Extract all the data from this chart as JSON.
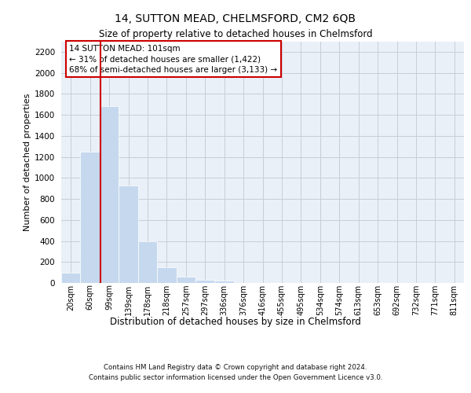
{
  "title1": "14, SUTTON MEAD, CHELMSFORD, CM2 6QB",
  "title2": "Size of property relative to detached houses in Chelmsford",
  "xlabel": "Distribution of detached houses by size in Chelmsford",
  "ylabel": "Number of detached properties",
  "categories": [
    "20sqm",
    "60sqm",
    "99sqm",
    "139sqm",
    "178sqm",
    "218sqm",
    "257sqm",
    "297sqm",
    "336sqm",
    "376sqm",
    "416sqm",
    "455sqm",
    "495sqm",
    "534sqm",
    "574sqm",
    "613sqm",
    "653sqm",
    "692sqm",
    "732sqm",
    "771sqm",
    "811sqm"
  ],
  "values": [
    100,
    1250,
    1680,
    930,
    400,
    150,
    60,
    30,
    25,
    0,
    0,
    0,
    0,
    0,
    0,
    0,
    0,
    0,
    0,
    0,
    0
  ],
  "bar_color": "#c5d8ee",
  "property_line_x": 1.55,
  "annotation_text": "14 SUTTON MEAD: 101sqm\n← 31% of detached houses are smaller (1,422)\n68% of semi-detached houses are larger (3,133) →",
  "vline_color": "#cc0000",
  "grid_color": "#c8ccd8",
  "background_color": "#eaf0f8",
  "ylim_max": 2300,
  "yticks": [
    0,
    200,
    400,
    600,
    800,
    1000,
    1200,
    1400,
    1600,
    1800,
    2000,
    2200
  ],
  "footer1": "Contains HM Land Registry data © Crown copyright and database right 2024.",
  "footer2": "Contains public sector information licensed under the Open Government Licence v3.0."
}
